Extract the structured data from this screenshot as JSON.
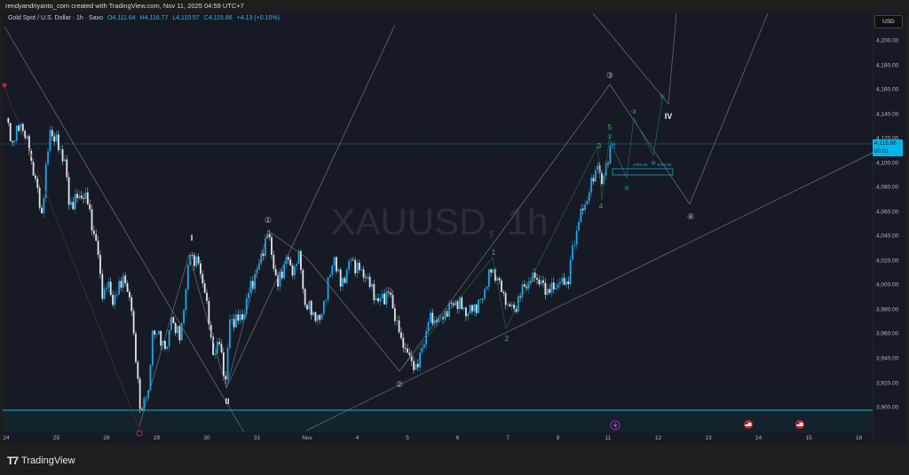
{
  "header": {
    "attribution": "rendyandriyanto_com created with TradingView.com, Nov 11, 2025 04:59 UTC+7"
  },
  "legend": {
    "symbol": "Gold Spot / U.S. Dollar · 1h · Saxo",
    "open": "O4,111.64",
    "high": "H4,116.77",
    "low": "L4,110.57",
    "close": "C4,115.86",
    "change": "+4.13 (+0.10%)"
  },
  "watermark": "XAUUSD, 1h",
  "price_axis": {
    "currency": "USD",
    "last_price": "4,115.86",
    "countdown": "00:01"
  },
  "footer": {
    "brand": "TradingView"
  },
  "annotations": {
    "primary": [
      "①",
      "②",
      "③",
      "④"
    ],
    "roman": [
      "I",
      "II",
      "IV"
    ],
    "green": [
      "1",
      "2",
      "3",
      "4",
      "5"
    ],
    "teal": [
      "①",
      "②",
      "③",
      "④",
      "⑤"
    ],
    "zone_top": "4095.56",
    "zone_bottom": "4090.56"
  },
  "colors": {
    "up": "#1ea7e8",
    "down": "#e6e6e6",
    "background": "#161a25",
    "last_price": "#00b7eb",
    "support": "#10849a",
    "zone": "#14222c",
    "wave_grey": "#8a8e98",
    "wave_green": "#4caf50",
    "wave_teal": "#14a6c4"
  },
  "events": [
    "lightning-event-icon",
    "us-flag-event-icon",
    "us-flag-event-icon"
  ],
  "chart_data": {
    "type": "candlestick",
    "title": "XAUUSD, 1h",
    "x_tick_labels": [
      "24",
      "25",
      "28",
      "29",
      "30",
      "31",
      "Nov",
      "4",
      "5",
      "6",
      "7",
      "8",
      "11",
      "12",
      "13",
      "14",
      "15",
      "18"
    ],
    "y_ticks": [
      4200,
      4180,
      4160,
      4140,
      4120,
      4100,
      4080,
      4060,
      4040,
      4020,
      4000,
      3980,
      3960,
      3940,
      3920,
      3900
    ],
    "y_tick_labels": [
      "4,200.00",
      "4,180.00",
      "4,160.00",
      "4,140.00",
      "4,120.00",
      "4,100.00",
      "4,080.00",
      "4,060.00",
      "4,040.00",
      "4,020.00",
      "4,000.00",
      "3,980.00",
      "3,960.00",
      "3,940.00",
      "3,920.00",
      "3,900.00"
    ],
    "ylim": [
      3880,
      4230
    ],
    "support_level": 3900,
    "last": {
      "open": 4111.64,
      "high": 4116.77,
      "low": 4110.57,
      "close": 4115.86
    },
    "approx_close_path": [
      [
        "24",
        0,
        4137
      ],
      [
        "24",
        3,
        4117
      ],
      [
        "24",
        7,
        4132
      ],
      [
        "24",
        11,
        4110
      ],
      [
        "24",
        17,
        4059
      ],
      [
        "24",
        21,
        4127
      ],
      [
        "25",
        4,
        4103
      ],
      [
        "25",
        6,
        4066
      ],
      [
        "25",
        14,
        4076
      ],
      [
        "25",
        20,
        4025
      ],
      [
        "25",
        22,
        3989
      ],
      [
        "28",
        1,
        4003
      ],
      [
        "28",
        3,
        3984
      ],
      [
        "28",
        8,
        4008
      ],
      [
        "28",
        12,
        3979
      ],
      [
        "28",
        16,
        3899
      ],
      [
        "28",
        20,
        3914
      ],
      [
        "28",
        22,
        3963
      ],
      [
        "29",
        5,
        3950
      ],
      [
        "29",
        7,
        3974
      ],
      [
        "29",
        11,
        3955
      ],
      [
        "29",
        16,
        4025
      ],
      [
        "29",
        20,
        4018
      ],
      [
        "29",
        23,
        3994
      ],
      [
        "30",
        3,
        3943
      ],
      [
        "30",
        6,
        3952
      ],
      [
        "30",
        9,
        3923
      ],
      [
        "30",
        11,
        3972
      ],
      [
        "30",
        17,
        3972
      ],
      [
        "30",
        20,
        3994
      ],
      [
        "31",
        1,
        4018
      ],
      [
        "31",
        5,
        4042
      ],
      [
        "31",
        7,
        4025
      ],
      [
        "31",
        10,
        3999
      ],
      [
        "31",
        14,
        4023
      ],
      [
        "31",
        17,
        4008
      ],
      [
        "31",
        20,
        4028
      ],
      [
        "31",
        23,
        3984
      ],
      [
        "Nov",
        6,
        3972
      ],
      [
        "Nov",
        13,
        4023
      ],
      [
        "Nov",
        16,
        3999
      ],
      [
        "Nov",
        21,
        4021
      ],
      [
        "4",
        4,
        4006
      ],
      [
        "4",
        10,
        3987
      ],
      [
        "4",
        15,
        3994
      ],
      [
        "4",
        21,
        3957
      ],
      [
        "5",
        2,
        3938
      ],
      [
        "5",
        5,
        3933
      ],
      [
        "5",
        10,
        3970
      ],
      [
        "5",
        16,
        3974
      ],
      [
        "5",
        23,
        3987
      ],
      [
        "6",
        5,
        3977
      ],
      [
        "6",
        12,
        3989
      ],
      [
        "6",
        15,
        4013
      ],
      [
        "6",
        19,
        4006
      ],
      [
        "6",
        23,
        3984
      ],
      [
        "7",
        3,
        3981
      ],
      [
        "7",
        8,
        3999
      ],
      [
        "7",
        13,
        4006
      ],
      [
        "7",
        20,
        3994
      ],
      [
        "8",
        2,
        4006
      ],
      [
        "8",
        5,
        4001
      ],
      [
        "8",
        6,
        4021
      ],
      [
        "8",
        10,
        4052
      ],
      [
        "8",
        15,
        4076
      ],
      [
        "8",
        19,
        4098
      ],
      [
        "8",
        21,
        4083
      ],
      [
        "11",
        1,
        4114
      ],
      [
        "11",
        3,
        4115.86
      ]
    ]
  }
}
